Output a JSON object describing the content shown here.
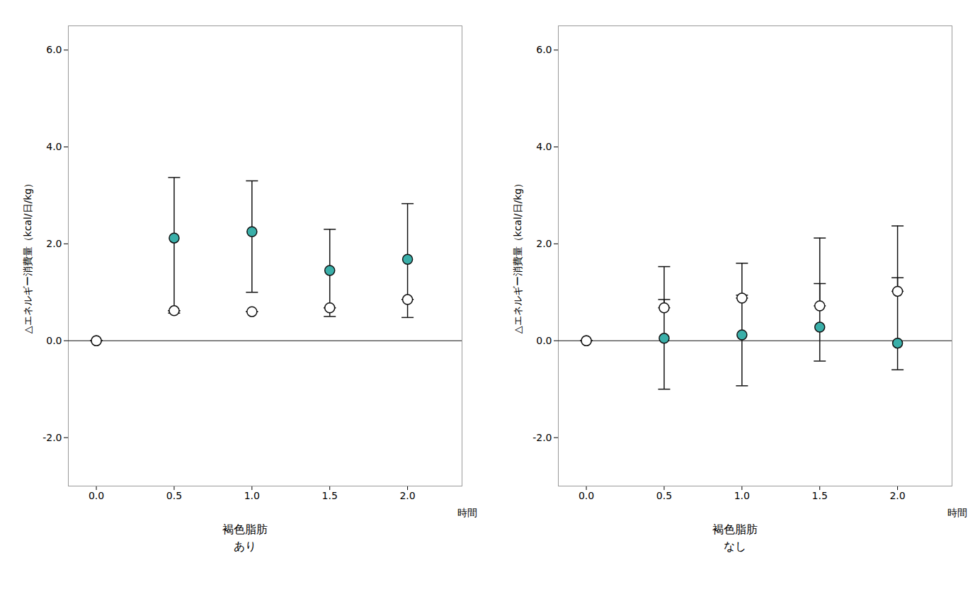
{
  "chart_data": [
    {
      "type": "scatter",
      "ylabel": "△エネルギー消費量（kcal/日/kg）",
      "xlabel": "時間",
      "annotations": [
        "褐色脂肪",
        "あり"
      ],
      "x": [
        0.0,
        0.5,
        1.0,
        1.5,
        2.0
      ],
      "xlim": [
        -0.18,
        2.35
      ],
      "xticks": [
        {
          "value": 0.0,
          "label": "0.0"
        },
        {
          "value": 0.5,
          "label": "0.5"
        },
        {
          "value": 1.0,
          "label": "1.0"
        },
        {
          "value": 1.5,
          "label": "1.5"
        },
        {
          "value": 2.0,
          "label": "2.0"
        }
      ],
      "ylim": [
        -3.0,
        6.5
      ],
      "yticks": [
        {
          "value": -2.0,
          "label": "-2.0"
        },
        {
          "value": 0.0,
          "label": "0.0"
        },
        {
          "value": 2.0,
          "label": "2.0"
        },
        {
          "value": 4.0,
          "label": "4.0"
        },
        {
          "value": 6.0,
          "label": "6.0"
        }
      ],
      "reference_lines": [
        0
      ],
      "grid": false,
      "color": "#111111",
      "series": [
        {
          "color": "#3aafa9",
          "marker": "o",
          "values": [
            0.0,
            2.12,
            2.25,
            1.45,
            1.68
          ],
          "error_upper": [
            0.0,
            1.25,
            1.05,
            0.85,
            1.15
          ],
          "error_lower": [
            0.0,
            1.55,
            1.25,
            0.95,
            1.2
          ]
        },
        {
          "color": "#ffffff",
          "marker": "o",
          "values": [
            0.0,
            0.62,
            0.6,
            0.68,
            0.85
          ],
          "error_upper": [
            0.0,
            0.0,
            0.0,
            0.0,
            0.0
          ],
          "error_lower": [
            0.0,
            0.0,
            0.0,
            0.0,
            0.0
          ]
        }
      ]
    },
    {
      "type": "scatter",
      "ylabel": "△エネルギー消費量（kcal/日/kg）",
      "xlabel": "時間",
      "annotations": [
        "褐色脂肪",
        "なし"
      ],
      "x": [
        0.0,
        0.5,
        1.0,
        1.5,
        2.0
      ],
      "xlim": [
        -0.18,
        2.35
      ],
      "xticks": [
        {
          "value": 0.0,
          "label": "0.0"
        },
        {
          "value": 0.5,
          "label": "0.5"
        },
        {
          "value": 1.0,
          "label": "1.0"
        },
        {
          "value": 1.5,
          "label": "1.5"
        },
        {
          "value": 2.0,
          "label": "2.0"
        }
      ],
      "ylim": [
        -3.0,
        6.5
      ],
      "yticks": [
        {
          "value": -2.0,
          "label": "-2.0"
        },
        {
          "value": 0.0,
          "label": "0.0"
        },
        {
          "value": 2.0,
          "label": "2.0"
        },
        {
          "value": 4.0,
          "label": "4.0"
        },
        {
          "value": 6.0,
          "label": "6.0"
        }
      ],
      "reference_lines": [
        0
      ],
      "grid": false,
      "color": "#111111",
      "series": [
        {
          "color": "#3aafa9",
          "marker": "o",
          "values": [
            0.0,
            0.05,
            0.12,
            0.28,
            -0.05
          ],
          "error_upper": [
            0.0,
            0.8,
            0.82,
            0.9,
            1.35
          ],
          "error_lower": [
            0.0,
            1.05,
            1.05,
            0.7,
            0.55
          ]
        },
        {
          "color": "#ffffff",
          "marker": "o",
          "values": [
            0.0,
            0.68,
            0.88,
            0.72,
            1.02
          ],
          "error_upper": [
            0.0,
            0.85,
            0.72,
            1.4,
            1.35
          ],
          "error_lower": [
            0.0,
            0.0,
            0.0,
            0.0,
            0.0
          ]
        }
      ]
    }
  ]
}
